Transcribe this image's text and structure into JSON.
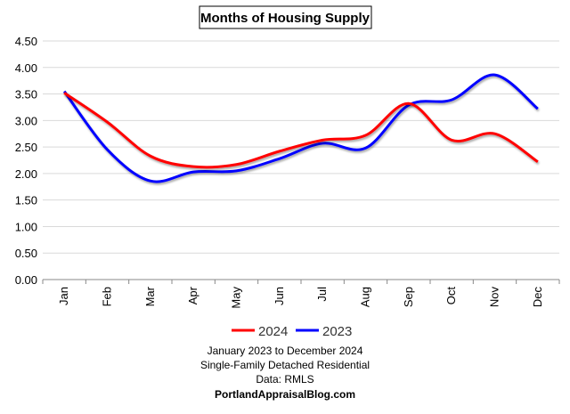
{
  "chart_data": {
    "type": "line",
    "title": "Months of Housing Supply",
    "categories": [
      "Jan",
      "Feb",
      "Mar",
      "Apr",
      "May",
      "Jun",
      "Jul",
      "Aug",
      "Sep",
      "Oct",
      "Nov",
      "Dec"
    ],
    "series": [
      {
        "name": "2024",
        "color": "#ff0000",
        "values": [
          3.52,
          2.97,
          2.33,
          2.13,
          2.17,
          2.42,
          2.63,
          2.72,
          3.32,
          2.63,
          2.75,
          2.22
        ]
      },
      {
        "name": "2023",
        "color": "#0000ff",
        "values": [
          3.55,
          2.45,
          1.86,
          2.03,
          2.05,
          2.28,
          2.57,
          2.48,
          3.29,
          3.39,
          3.86,
          3.22
        ]
      }
    ],
    "yticks": [
      "0.00",
      "0.50",
      "1.00",
      "1.50",
      "2.00",
      "2.50",
      "3.00",
      "3.50",
      "4.00",
      "4.50"
    ],
    "ylim": [
      0,
      4.5
    ],
    "grid": true,
    "legend_position": "bottom",
    "xlabel": "",
    "ylabel": ""
  },
  "footer": {
    "line1": "January 2023 to December 2024",
    "line2": "Single-Family Detached Residential",
    "line3": "Data: RMLS",
    "line4": "PortlandAppraisalBlog.com"
  }
}
